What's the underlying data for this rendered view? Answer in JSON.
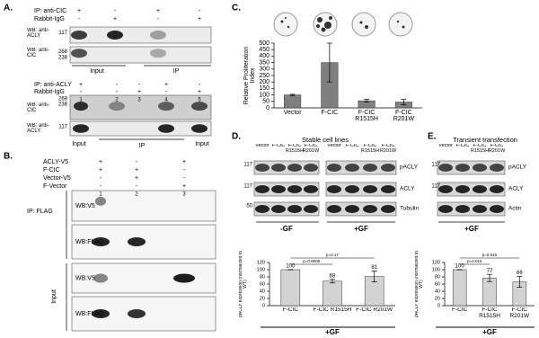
{
  "panel_a": {
    "label": "A.",
    "top": {
      "conditions": [
        {
          "name": "IP: anti-CIC",
          "signs": [
            "+",
            "-",
            "+",
            "-"
          ]
        },
        {
          "name": "Rabbit-IgG",
          "signs": [
            "-",
            "+",
            "-",
            "+"
          ]
        }
      ],
      "blots": [
        {
          "name": "WB: anti-ACLY",
          "markers": [
            "117"
          ]
        },
        {
          "name": "WB: anti-CIC",
          "markers": [
            "268",
            "238"
          ]
        }
      ],
      "groups": [
        "Input",
        "IP"
      ]
    },
    "bottom": {
      "conditions": [
        {
          "name": "IP: anti-ACLY",
          "signs": [
            "+",
            "-",
            "-",
            "+",
            "-"
          ]
        },
        {
          "name": "Rabbit-IgG",
          "signs": [
            "-",
            "-",
            "+",
            "-",
            "+"
          ]
        }
      ],
      "lanes": [
        "1",
        "2",
        "3",
        "4",
        "5"
      ],
      "blots": [
        {
          "name": "WB: anti-CIC",
          "markers": [
            "268",
            "238"
          ]
        },
        {
          "name": "WB: anti-ACLY",
          "markers": [
            "117"
          ]
        }
      ],
      "groups": [
        "Input",
        "IP",
        "Input"
      ]
    }
  },
  "panel_b": {
    "label": "B.",
    "conditions": [
      {
        "name": "ACLY-V5",
        "signs": [
          "+",
          "-",
          "+"
        ]
      },
      {
        "name": "F-CIC",
        "signs": [
          "+",
          "+",
          "-"
        ]
      },
      {
        "name": "Vector-V5",
        "signs": [
          "-",
          "+",
          "-"
        ]
      },
      {
        "name": "F-Vector",
        "signs": [
          "-",
          "-",
          "+"
        ]
      }
    ],
    "lanes": [
      "1",
      "2",
      "3"
    ],
    "sections": [
      {
        "name": "IP: FLAG",
        "blots": [
          "WB:V5",
          "WB:FLAG"
        ]
      },
      {
        "name": "Input",
        "blots": [
          "WB:V5",
          "WB:FLAG"
        ]
      }
    ]
  },
  "panel_c": {
    "label": "C."
  },
  "panel_d": {
    "label": "D.",
    "title": "Stable cell lines",
    "lanes": [
      "Vector",
      "F-CIC",
      "F-CIC R1515H",
      "F-CIC R201W"
    ],
    "blots": [
      {
        "name": "pACLY",
        "marker": "117"
      },
      {
        "name": "ACLY",
        "marker": "117"
      },
      {
        "name": "Tubulin",
        "marker": "50"
      }
    ],
    "conditions": [
      "-GF",
      "+GF"
    ]
  },
  "panel_e": {
    "label": "E.",
    "title": "Transient transfection",
    "lanes": [
      "Vector",
      "F-CIC",
      "F-CIC R1515H",
      "F-CIC R201W"
    ],
    "blots": [
      {
        "name": "pACLY",
        "marker": "117"
      },
      {
        "name": "ACLY",
        "marker": "117"
      },
      {
        "name": "Actin"
      }
    ],
    "condition": "+GF"
  },
  "chart_data": [
    {
      "type": "bar",
      "ylabel": "Relative Proliferation Index",
      "categories": [
        "Vector",
        "F-CIC",
        "F-CIC R1515H",
        "F-CIC R201W"
      ],
      "values": [
        100,
        350,
        55,
        45
      ],
      "errors": [
        5,
        150,
        10,
        20
      ],
      "color": "#7f7f7f",
      "ylim": [
        0,
        500
      ],
      "yticks": [
        0,
        50,
        100,
        150,
        200,
        250,
        300,
        350,
        400,
        450,
        500
      ]
    },
    {
      "type": "bar",
      "ylabel": "pACLY expression (normalized to WT)",
      "categories": [
        "F-CIC",
        "F-CIC R1515H",
        "F-CIC R201W"
      ],
      "values": [
        100,
        68,
        81
      ],
      "errors": [
        0,
        5,
        15
      ],
      "show_values": true,
      "color": "#d3d3d3",
      "ylim": [
        0,
        120
      ],
      "yticks": [
        0,
        20,
        40,
        60,
        80,
        100,
        120
      ],
      "annotations": [
        "p=0.0005",
        "p=0.17"
      ],
      "xlabel": "+GF"
    },
    {
      "type": "bar",
      "ylabel": "pACLY expression (normalized to WT)",
      "categories": [
        "F-CIC",
        "F-CIC R1515H",
        "F-CIC R201W"
      ],
      "values": [
        100,
        77,
        66
      ],
      "errors": [
        0,
        10,
        15
      ],
      "show_values": true,
      "color": "#d3d3d3",
      "ylim": [
        0,
        120
      ],
      "yticks": [
        0,
        20,
        40,
        60,
        80,
        100,
        120
      ],
      "annotations": [
        "p=0.015",
        "p=0.016"
      ],
      "xlabel": "+GF"
    }
  ]
}
